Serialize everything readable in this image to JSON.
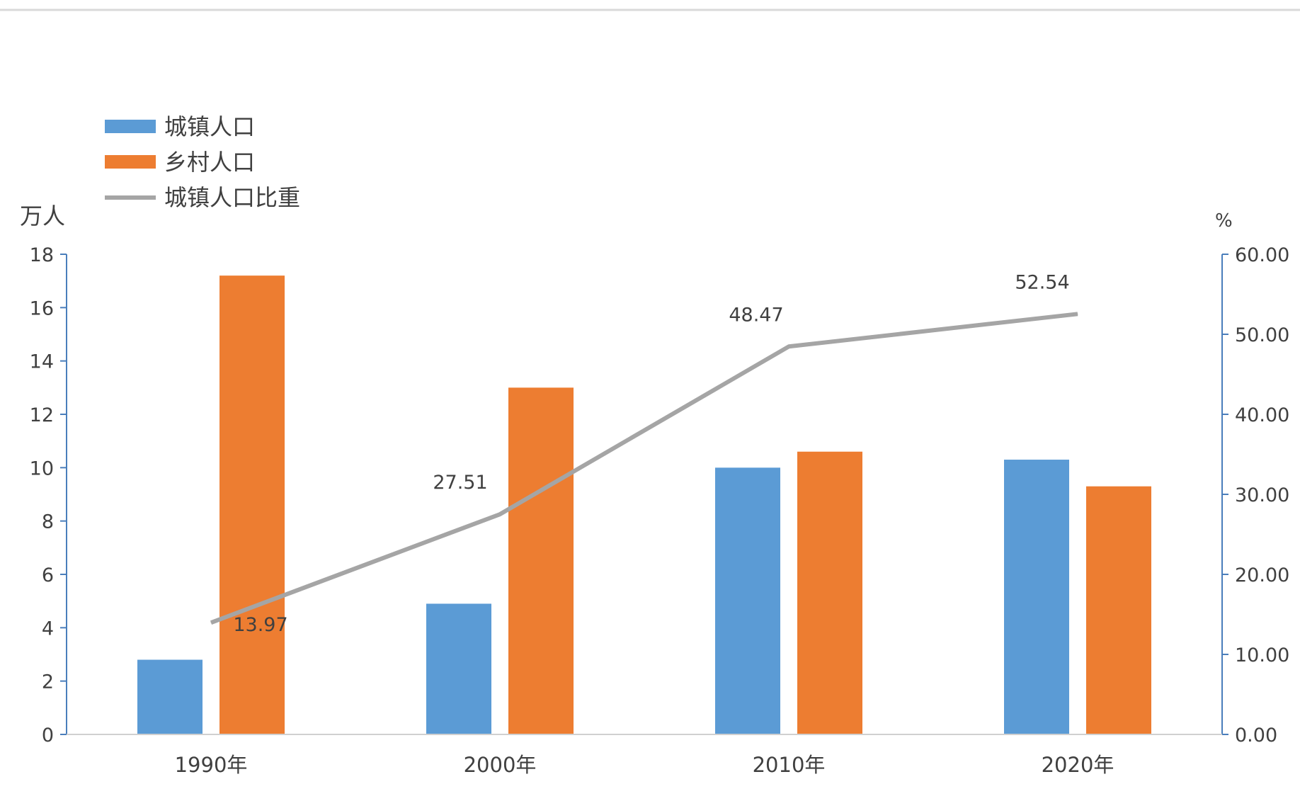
{
  "chart_data": {
    "type": "bar",
    "categories": [
      "1990年",
      "2000年",
      "2010年",
      "2020年"
    ],
    "series": [
      {
        "name": "城镇人口",
        "type": "bar",
        "axis": "left",
        "color": "#5B9BD5",
        "values": [
          2.8,
          4.9,
          10.0,
          10.3
        ]
      },
      {
        "name": "乡村人口",
        "type": "bar",
        "axis": "left",
        "color": "#ED7D31",
        "values": [
          17.2,
          13.0,
          10.6,
          9.3
        ]
      },
      {
        "name": "城镇人口比重",
        "type": "line",
        "axis": "right",
        "color": "#A5A5A5",
        "values": [
          13.97,
          27.51,
          48.47,
          52.54
        ],
        "data_labels": [
          "13.97",
          "27.51",
          "48.47",
          "52.54"
        ]
      }
    ],
    "y_left": {
      "label": "万人",
      "ylim": [
        0,
        18
      ],
      "ticks": [
        0,
        2,
        4,
        6,
        8,
        10,
        12,
        14,
        16,
        18
      ],
      "tick_labels": [
        "0",
        "2",
        "4",
        "6",
        "8",
        "10",
        "12",
        "14",
        "16",
        "18"
      ]
    },
    "y_right": {
      "label": "%",
      "ylim": [
        0,
        60
      ],
      "ticks": [
        0,
        10,
        20,
        30,
        40,
        50,
        60
      ],
      "tick_labels": [
        "0.00",
        "10.00",
        "20.00",
        "30.00",
        "40.00",
        "50.00",
        "60.00"
      ]
    },
    "legend": {
      "position": "top-left",
      "entries": [
        "城镇人口",
        "乡村人口",
        "城镇人口比重"
      ]
    },
    "grid": false,
    "axis_color": "#4A7EBB",
    "text_color": "#404040"
  }
}
